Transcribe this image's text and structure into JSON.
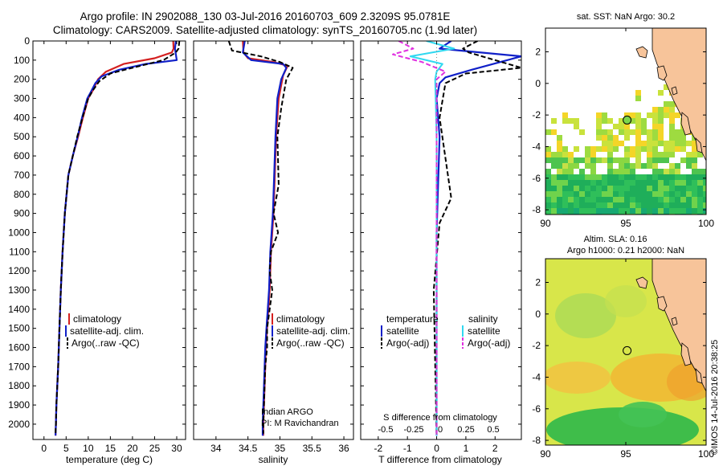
{
  "header": {
    "line1": "Argo profile: IN 2902088_130 03-Jul-2016 20160703_609 2.3209S 95.0781E",
    "line2": "Climatology: CARS2009. Satellite-adjusted climatology: synTS_20160705.nc (1.9d later)"
  },
  "stamp": "©IMOS 14-Jul-2016 20:38:25",
  "colors": {
    "clim": "#d42020",
    "sat": "#1020c8",
    "argo": "#000000",
    "sat_s": "#30d8f0",
    "argo_s": "#e030e0"
  },
  "profile_panels": {
    "depth_ticks": [
      0,
      100,
      200,
      300,
      400,
      500,
      600,
      700,
      800,
      900,
      1000,
      1100,
      1200,
      1300,
      1400,
      1500,
      1600,
      1700,
      1800,
      1900,
      2000
    ],
    "depth_range": [
      0,
      2080
    ],
    "temperature": {
      "xlabel": "temperature (deg C)",
      "xlim": [
        -2.5,
        32
      ],
      "xticks": [
        0,
        5,
        10,
        15,
        20,
        25,
        30
      ],
      "legend": [
        "climatology",
        "satellite-adj. clim.",
        "Argo(..raw -QC)"
      ]
    },
    "salinity": {
      "xlabel": "salinity",
      "xlim": [
        33.65,
        36.15
      ],
      "xticks": [
        34,
        34.5,
        35,
        35.5,
        36
      ],
      "legend": [
        "climatology",
        "satellite-adj. clim.",
        "Argo(..raw -QC)"
      ],
      "note1": "Indian ARGO",
      "note2": "PI: M Ravichandran"
    },
    "difference": {
      "xlabel": "T difference from climatology",
      "top_axis_label": "S difference from climatology",
      "xlim": [
        -2.6,
        2.9
      ],
      "xticks": [
        -2,
        -1,
        0,
        1,
        2
      ],
      "s_ticks": [
        "-0.5",
        "-0.25",
        "0",
        "0.25",
        "0.5"
      ],
      "legend_t_title": "temperature",
      "legend_s_title": "salinity",
      "legend_t": [
        "satellite",
        "Argo(-adj)"
      ],
      "legend_s": [
        "satellite",
        "Argo(-adj)"
      ]
    }
  },
  "chart_data": [
    {
      "type": "line",
      "title": "",
      "xlabel": "temperature (deg C)",
      "ylabel": "",
      "y_axis": "depth (inverted)",
      "series": [
        {
          "name": "climatology",
          "x": [
            29.2,
            29.3,
            28.9,
            25,
            18,
            14,
            12.2,
            11,
            10,
            8.8,
            7.7,
            6.5,
            5.5,
            4.7,
            4.2,
            3.8,
            3.5,
            3.2,
            3.0,
            2.8,
            2.7,
            2.6
          ],
          "y": [
            0,
            40,
            60,
            90,
            120,
            160,
            200,
            260,
            300,
            400,
            500,
            600,
            700,
            900,
            1100,
            1300,
            1500,
            1700,
            1800,
            1900,
            2000,
            2060
          ]
        },
        {
          "name": "satellite-adj. clim.",
          "x": [
            29.8,
            29.6,
            30.0,
            23,
            17,
            13,
            11.6,
            10.5,
            9.8,
            8.6,
            7.6,
            6.5,
            5.5,
            4.7,
            4.2,
            3.8,
            3.5,
            3.2,
            3.0,
            2.8,
            2.7,
            2.6
          ],
          "y": [
            0,
            40,
            100,
            120,
            150,
            185,
            220,
            270,
            300,
            400,
            500,
            600,
            700,
            900,
            1100,
            1300,
            1500,
            1700,
            1800,
            1900,
            2000,
            2060
          ]
        },
        {
          "name": "Argo(..raw -QC)",
          "x": [
            30.6,
            30.4,
            29.8,
            27,
            20,
            15,
            12.5,
            11,
            10,
            8.7,
            7.5,
            6.5,
            5.5,
            4.7,
            4.2,
            3.8,
            3.5,
            3.2,
            3.0,
            2.8,
            2.7,
            2.6
          ],
          "y": [
            0,
            40,
            60,
            100,
            140,
            170,
            210,
            260,
            300,
            400,
            500,
            600,
            700,
            900,
            1100,
            1300,
            1500,
            1700,
            1800,
            1900,
            2000,
            2050
          ]
        }
      ],
      "xlim": [
        -2.5,
        32
      ],
      "ylim": [
        2080,
        0
      ]
    },
    {
      "type": "line",
      "title": "",
      "xlabel": "salinity",
      "ylabel": "",
      "series": [
        {
          "name": "climatology",
          "x": [
            34.42,
            34.43,
            34.5,
            34.9,
            35.12,
            35.05,
            34.98,
            34.94,
            34.92,
            34.9,
            34.88,
            34.86,
            34.84,
            34.82,
            34.8,
            34.78,
            34.77,
            34.76,
            34.75,
            34.74,
            34.74
          ],
          "y": [
            0,
            60,
            90,
            110,
            130,
            180,
            300,
            500,
            700,
            900,
            1000,
            1100,
            1300,
            1400,
            1500,
            1600,
            1700,
            1800,
            1900,
            2000,
            2060
          ]
        },
        {
          "name": "satellite-adj. clim.",
          "x": [
            34.45,
            34.42,
            34.55,
            35.05,
            35.1,
            35.02,
            34.96,
            34.93,
            34.91,
            34.89,
            34.87,
            34.85,
            34.83,
            34.81,
            34.79,
            34.77,
            34.76,
            34.75,
            34.74,
            34.73,
            34.73
          ],
          "y": [
            0,
            60,
            100,
            120,
            140,
            200,
            300,
            500,
            700,
            900,
            1000,
            1100,
            1300,
            1400,
            1500,
            1600,
            1700,
            1800,
            1900,
            2000,
            2060
          ]
        },
        {
          "name": "Argo(..raw -QC)",
          "x": [
            34.2,
            34.25,
            34.7,
            35.0,
            35.2,
            35.1,
            35.02,
            34.96,
            34.98,
            34.9,
            34.97,
            34.86,
            34.84,
            34.88,
            34.8,
            34.8,
            34.77,
            34.76,
            34.75,
            34.74,
            34.74
          ],
          "y": [
            0,
            50,
            80,
            110,
            140,
            200,
            350,
            500,
            750,
            900,
            1000,
            1100,
            1200,
            1300,
            1500,
            1600,
            1700,
            1800,
            1900,
            2000,
            2050
          ]
        }
      ],
      "xlim": [
        33.65,
        36.15
      ],
      "ylim": [
        2080,
        0
      ]
    },
    {
      "type": "line",
      "title": "",
      "xlabel": "T difference from climatology",
      "ylabel": "",
      "series": [
        {
          "name": "temperature satellite",
          "x": [
            0.5,
            0.1,
            2.9,
            1.2,
            0.3,
            0.1,
            0,
            0.1,
            0,
            0,
            0
          ],
          "y": [
            0,
            40,
            80,
            150,
            190,
            220,
            300,
            500,
            1000,
            1500,
            2060
          ]
        },
        {
          "name": "temperature Argo(-adj)",
          "x": [
            1.4,
            0.9,
            1.1,
            2.9,
            1.0,
            0.3,
            0.1,
            0.5,
            0.1,
            -0.1,
            0
          ],
          "y": [
            0,
            40,
            60,
            140,
            170,
            220,
            400,
            820,
            950,
            1300,
            2060
          ]
        },
        {
          "name": "salinity satellite",
          "x": [
            -0.35,
            0.6,
            -0.9,
            0.2,
            0,
            -0.05,
            0,
            0
          ],
          "y": [
            0,
            40,
            80,
            120,
            160,
            200,
            500,
            2060
          ]
        },
        {
          "name": "salinity Argo(-adj)",
          "x": [
            -1.3,
            -0.8,
            -1.5,
            -0.5,
            0.3,
            0,
            0
          ],
          "y": [
            0,
            40,
            70,
            110,
            160,
            200,
            2060
          ]
        }
      ],
      "xlim": [
        -2.6,
        2.9
      ],
      "ylim": [
        2080,
        0
      ]
    },
    {
      "type": "heatmap",
      "title": "sat. SST: NaN Argo: 30.2",
      "xlabel": "",
      "ylabel": "",
      "xlim": [
        90,
        100
      ],
      "ylim": [
        -8.3,
        3.5
      ],
      "xticks": [
        90,
        95,
        100
      ],
      "yticks": [
        -8,
        -6,
        -4,
        -2,
        0,
        2
      ],
      "float_position": [
        95.08,
        -2.32
      ]
    },
    {
      "type": "heatmap",
      "title": "Altim. SLA: 0.16",
      "subtitle": "Argo h1000: 0.21 h2000: NaN",
      "xlabel": "",
      "ylabel": "",
      "xlim": [
        90,
        100
      ],
      "ylim": [
        -8.3,
        3.5
      ],
      "xticks": [
        90,
        95,
        100
      ],
      "yticks": [
        -8,
        -6,
        -4,
        -2,
        0,
        2
      ],
      "float_position": [
        95.08,
        -2.32
      ]
    }
  ]
}
